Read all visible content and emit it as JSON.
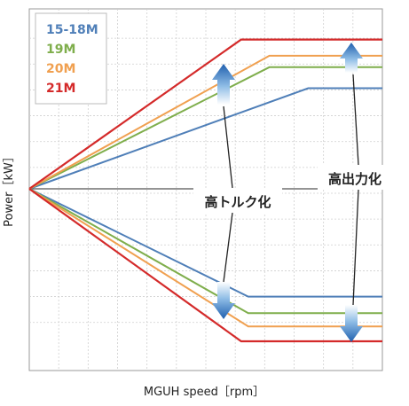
{
  "chart_data": {
    "type": "line",
    "title": "",
    "xlabel": "MGUH speed［rpm］",
    "ylabel": "Power［kW］",
    "x_ticks_count": 12,
    "y_ticks_count": 13,
    "xlim": [
      0,
      100
    ],
    "ylim": [
      -100,
      100
    ],
    "grid": true,
    "legend_position": "top-left",
    "series": [
      {
        "name": "15-18M",
        "color": "#4f7fb8",
        "x": [
          0,
          79,
          100
        ],
        "y": [
          0,
          62,
          62
        ]
      },
      {
        "name": "19M",
        "color": "#7fae4c",
        "x": [
          0,
          68,
          100
        ],
        "y": [
          0,
          75,
          75
        ]
      },
      {
        "name": "20M",
        "color": "#f0a050",
        "x": [
          0,
          68,
          100
        ],
        "y": [
          0,
          82,
          82
        ]
      },
      {
        "name": "21M",
        "color": "#d42a2a",
        "x": [
          0,
          60,
          100
        ],
        "y": [
          0,
          92,
          92
        ]
      },
      {
        "name": "15-18M",
        "color": "#4f7fb8",
        "x": [
          0,
          62,
          100
        ],
        "y": [
          0,
          -65,
          -65
        ]
      },
      {
        "name": "19M",
        "color": "#7fae4c",
        "x": [
          0,
          62,
          100
        ],
        "y": [
          0,
          -75,
          -75
        ]
      },
      {
        "name": "20M",
        "color": "#f0a050",
        "x": [
          0,
          62,
          100
        ],
        "y": [
          0,
          -83,
          -83
        ]
      },
      {
        "name": "21M",
        "color": "#d42a2a",
        "x": [
          0,
          60,
          100
        ],
        "y": [
          0,
          -92,
          -92
        ]
      }
    ],
    "annotations": {
      "torque": "高トルク化",
      "power": "高出力化"
    },
    "arrow_color": "#2e6ab3"
  }
}
